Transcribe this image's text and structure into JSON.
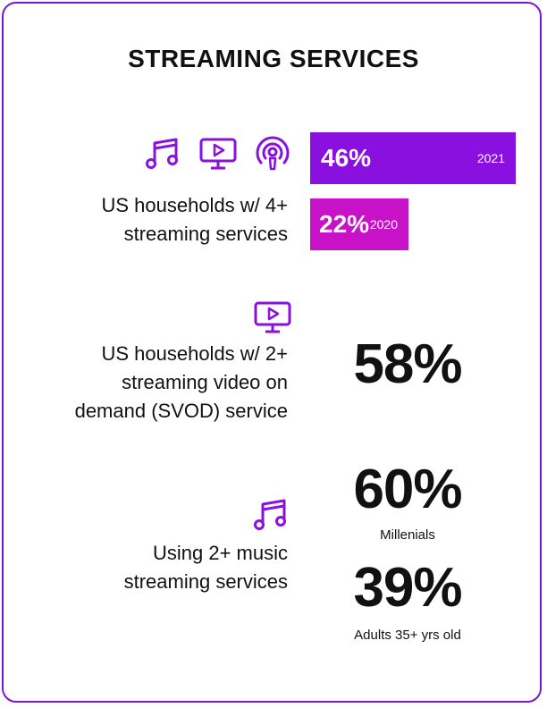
{
  "title": "STREAMING SERVICES",
  "colors": {
    "accent": "#8a10e0",
    "magenta": "#c812c8",
    "border": "#7a16d6"
  },
  "icons": [
    "music-note-icon",
    "video-screen-icon",
    "podcast-icon"
  ],
  "section_1": {
    "label_line1": "US households w/ 4+",
    "label_line2": "streaming services",
    "bars": [
      {
        "value": "46%",
        "year": "2021",
        "fraction": 0.46
      },
      {
        "value": "22%",
        "year": "2020",
        "fraction": 0.22
      }
    ]
  },
  "section_2": {
    "label_line1": "US households w/ 2+",
    "label_line2": "streaming video on",
    "label_line3": "demand (SVOD) service",
    "stat": "58%"
  },
  "section_3": {
    "label_line1": "Using 2+ music",
    "label_line2": "streaming services",
    "stats": [
      {
        "value": "60%",
        "caption": "Millenials"
      },
      {
        "value": "39%",
        "caption": "Adults 35+ yrs old"
      }
    ]
  }
}
